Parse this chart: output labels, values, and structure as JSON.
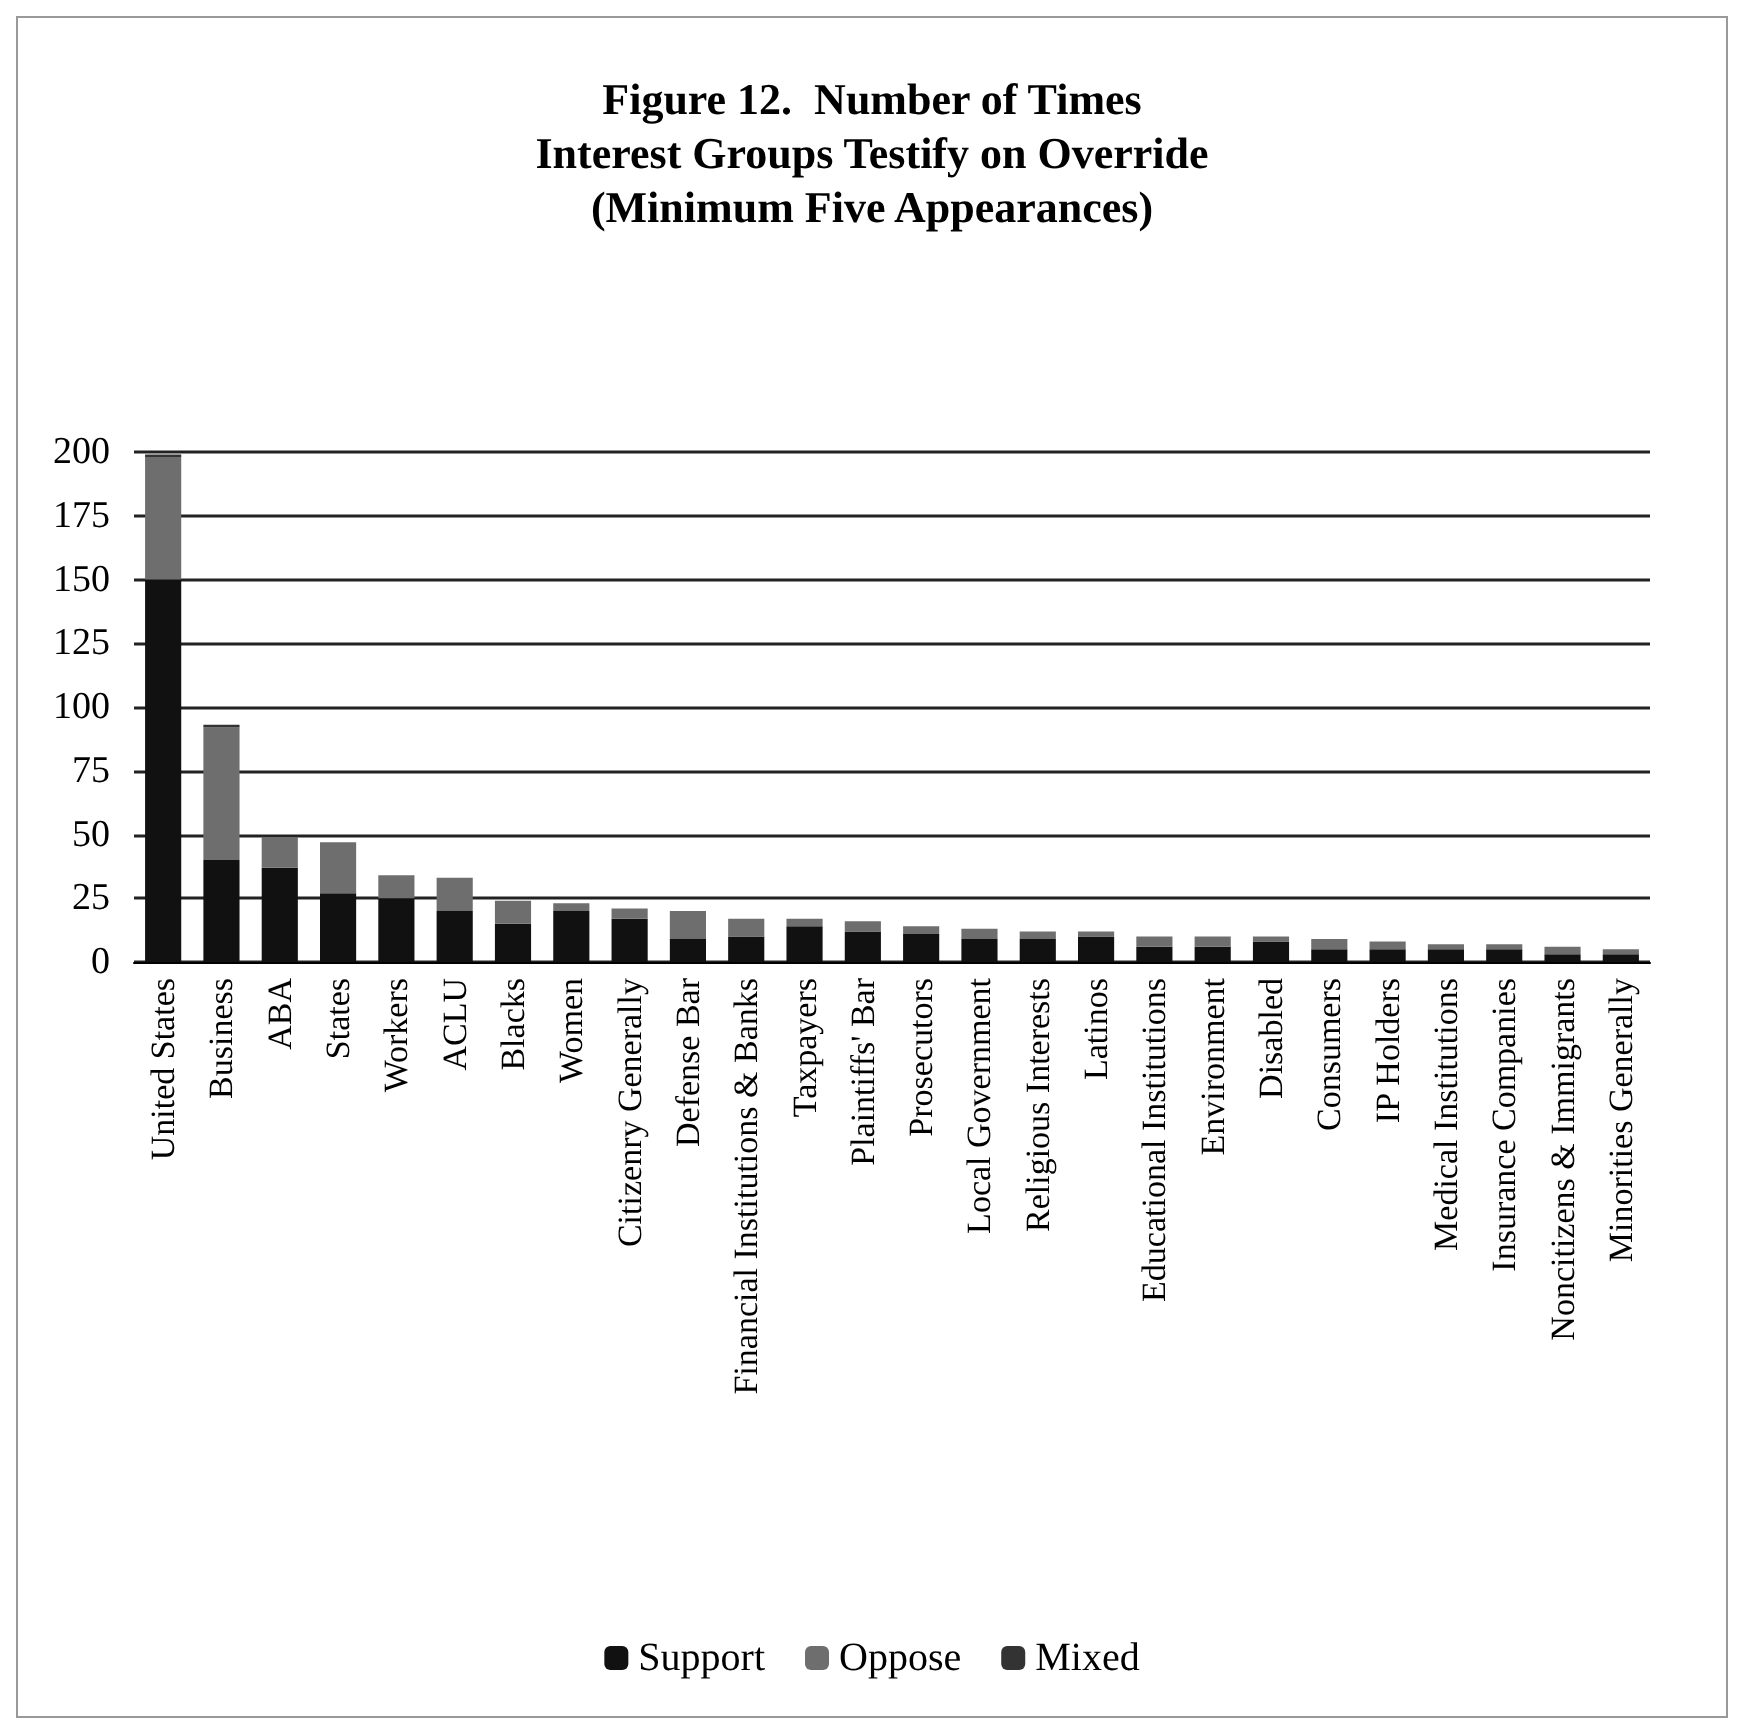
{
  "chart_data": {
    "type": "bar",
    "stacked": true,
    "title": "Figure 12.  Number of Times\nInterest Groups Testify on Override\n(Minimum Five Appearances)",
    "categories": [
      "United States",
      "Business",
      "ABA",
      "States",
      "Workers",
      "ACLU",
      "Blacks",
      "Women",
      "Citizenry Generally",
      "Defense Bar",
      "Financial Institutions & Banks",
      "Taxpayers",
      "Plaintiffs' Bar",
      "Prosecutors",
      "Local Government",
      "Religious Interests",
      "Latinos",
      "Educational Institutions",
      "Environment",
      "Disabled",
      "Consumers",
      "IP Holders",
      "Medical Institutions",
      "Insurance Companies",
      "Noncitizens & Immigrants",
      "Minorities Generally"
    ],
    "series": [
      {
        "name": "Support",
        "color": "#111111",
        "values": [
          150,
          40,
          37,
          27,
          25,
          20,
          15,
          20,
          17,
          9,
          10,
          14,
          12,
          11,
          9,
          9,
          10,
          6,
          6,
          8,
          5,
          5,
          5,
          5,
          3,
          3
        ]
      },
      {
        "name": "Oppose",
        "color": "#6e6e6e",
        "values": [
          48,
          52,
          12,
          20,
          9,
          13,
          9,
          3,
          4,
          11,
          7,
          3,
          4,
          3,
          4,
          3,
          2,
          4,
          4,
          2,
          4,
          3,
          2,
          2,
          3,
          2
        ]
      },
      {
        "name": "Mixed",
        "color": "#333333",
        "values": [
          1,
          1,
          0,
          0,
          0,
          0,
          0,
          0,
          0,
          0,
          0,
          0,
          0,
          0,
          0,
          0,
          0,
          0,
          0,
          0,
          0,
          0,
          0,
          0,
          0,
          0
        ]
      }
    ],
    "ylim": [
      0,
      200
    ],
    "yticks": [
      0,
      25,
      50,
      75,
      100,
      125,
      150,
      175,
      200
    ],
    "grid": "y",
    "legend": "bottom"
  }
}
